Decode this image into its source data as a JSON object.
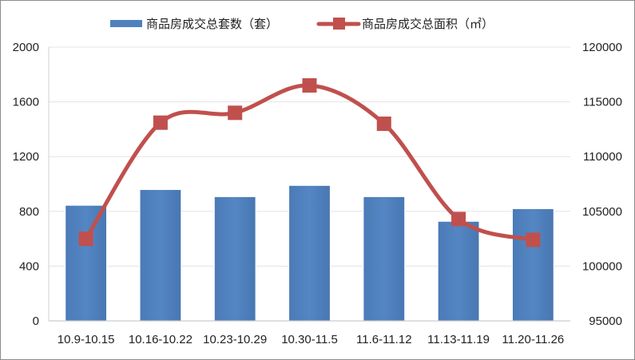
{
  "chart_data": {
    "type": "bar",
    "categories": [
      "10.9-10.15",
      "10.16-10.22",
      "10.23-10.29",
      "10.30-11.5",
      "11.6-11.12",
      "11.13-11.19",
      "11.20-11.26"
    ],
    "series": [
      {
        "name": "商品房成交总套数（套）",
        "type": "bar",
        "axis": "left",
        "color": "#4f81bd",
        "values": [
          845,
          960,
          908,
          990,
          908,
          728,
          820
        ]
      },
      {
        "name": "商品房成交总面积（㎡）",
        "type": "line",
        "axis": "right",
        "color": "#c0504d",
        "marker": "square",
        "smooth": true,
        "values": [
          102500,
          113100,
          114000,
          116500,
          113000,
          104300,
          102400
        ]
      }
    ],
    "left_axis": {
      "min": 0,
      "max": 2000,
      "ticks": [
        0,
        400,
        800,
        1200,
        1600,
        2000
      ]
    },
    "right_axis": {
      "min": 95000,
      "max": 120000,
      "ticks": [
        95000,
        100000,
        105000,
        110000,
        115000,
        120000
      ]
    },
    "grid": true,
    "legend_position": "top"
  }
}
